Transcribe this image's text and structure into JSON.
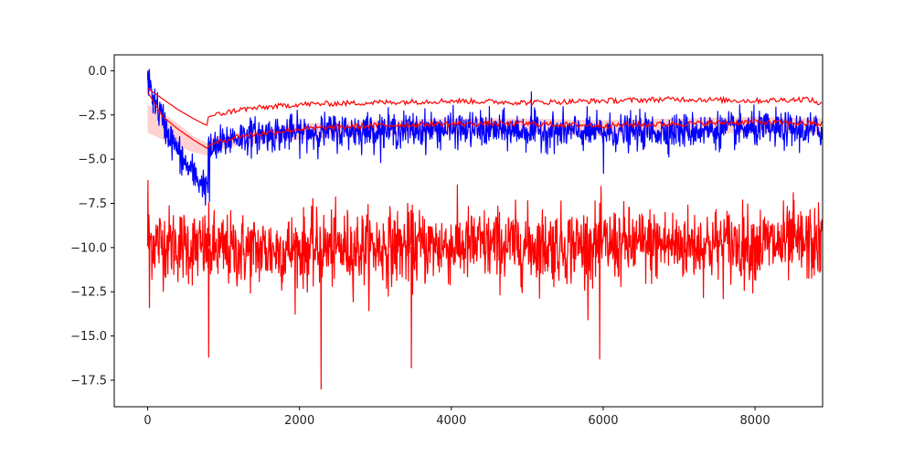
{
  "chart_data": {
    "type": "line",
    "title": "",
    "xlabel": "",
    "ylabel": "",
    "xlim": [
      -440,
      8890
    ],
    "ylim": [
      -19,
      0.9
    ],
    "grid": false,
    "x_ticks": [
      0,
      2000,
      4000,
      6000,
      8000
    ],
    "y_ticks": [
      0.0,
      -2.5,
      -5.0,
      -7.5,
      -10.0,
      -12.5,
      -15.0,
      -17.5
    ],
    "x_tick_labels": [
      "0",
      "2000",
      "4000",
      "6000",
      "8000"
    ],
    "y_tick_labels": [
      "0.0",
      "−2.5",
      "−5.0",
      "−7.5",
      "−10.0",
      "−12.5",
      "−15.0",
      "−17.5"
    ],
    "series": [
      {
        "kind": "noisy-line",
        "color": "#0000ff",
        "x_range": [
          0,
          8880
        ],
        "center": [
          [
            0,
            -0.5
          ],
          [
            100,
            -1.8
          ],
          [
            300,
            -3.8
          ],
          [
            500,
            -5.3
          ],
          [
            700,
            -6.3
          ],
          [
            790,
            -6.6
          ],
          [
            800,
            -4.6
          ],
          [
            1100,
            -3.8
          ],
          [
            1500,
            -3.6
          ],
          [
            2500,
            -3.4
          ],
          [
            4000,
            -3.3
          ],
          [
            6000,
            -3.5
          ],
          [
            8000,
            -3.3
          ],
          [
            8880,
            -3.4
          ]
        ],
        "spread": 0.65,
        "extremes": [
          [
            0,
            0.0
          ],
          [
            5050,
            -1.2
          ],
          [
            810,
            -7.4
          ],
          [
            6000,
            -5.8
          ]
        ]
      },
      {
        "kind": "noisy-line",
        "color": "#ff0000",
        "x_range": [
          0,
          8880
        ],
        "center": [
          [
            0,
            -9.6
          ],
          [
            1000,
            -10.2
          ],
          [
            4000,
            -9.9
          ],
          [
            8880,
            -9.8
          ]
        ],
        "spread": 1.4,
        "extremes": [
          [
            0,
            -6.2
          ],
          [
            20,
            -13.4
          ],
          [
            800,
            -16.2
          ],
          [
            2280,
            -18.0
          ],
          [
            3470,
            -16.8
          ],
          [
            5950,
            -16.3
          ],
          [
            8500,
            -6.9
          ]
        ]
      },
      {
        "kind": "smooth-line",
        "color": "#ff0000",
        "points": [
          [
            0,
            -1.0
          ],
          [
            200,
            -1.6
          ],
          [
            400,
            -2.2
          ],
          [
            600,
            -2.7
          ],
          [
            780,
            -3.1
          ],
          [
            800,
            -2.6
          ],
          [
            1200,
            -2.2
          ],
          [
            2000,
            -1.9
          ],
          [
            3000,
            -1.8
          ],
          [
            4000,
            -1.7
          ],
          [
            5000,
            -1.8
          ],
          [
            6000,
            -1.7
          ],
          [
            7000,
            -1.6
          ],
          [
            8000,
            -1.7
          ],
          [
            8700,
            -1.6
          ],
          [
            8880,
            -1.9
          ]
        ]
      },
      {
        "kind": "smooth-line",
        "color": "#ff0000",
        "points": [
          [
            0,
            -1.2
          ],
          [
            200,
            -2.6
          ],
          [
            400,
            -3.3
          ],
          [
            600,
            -3.9
          ],
          [
            790,
            -4.4
          ],
          [
            810,
            -4.2
          ],
          [
            1200,
            -3.7
          ],
          [
            2000,
            -3.3
          ],
          [
            3000,
            -3.1
          ],
          [
            4000,
            -3.0
          ],
          [
            5000,
            -3.0
          ],
          [
            6000,
            -3.1
          ],
          [
            7000,
            -3.0
          ],
          [
            8000,
            -2.9
          ],
          [
            8880,
            -3.0
          ]
        ]
      }
    ],
    "bands": [
      {
        "color": "#ff9999",
        "opacity": 0.45,
        "upper": [
          [
            0,
            -1.9
          ],
          [
            200,
            -2.4
          ],
          [
            400,
            -3.0
          ],
          [
            600,
            -3.7
          ],
          [
            790,
            -4.1
          ],
          [
            810,
            -3.8
          ],
          [
            1200,
            -3.5
          ],
          [
            2000,
            -3.0
          ],
          [
            3000,
            -2.8
          ],
          [
            4000,
            -2.7
          ],
          [
            5000,
            -2.7
          ],
          [
            6000,
            -2.8
          ],
          [
            7000,
            -2.7
          ],
          [
            8000,
            -2.6
          ],
          [
            8880,
            -2.7
          ]
        ],
        "lower": [
          [
            0,
            -3.5
          ],
          [
            200,
            -3.9
          ],
          [
            400,
            -4.3
          ],
          [
            600,
            -4.6
          ],
          [
            790,
            -4.8
          ],
          [
            810,
            -4.6
          ],
          [
            1200,
            -4.2
          ],
          [
            2000,
            -3.9
          ],
          [
            3000,
            -3.7
          ],
          [
            4000,
            -3.6
          ],
          [
            5000,
            -3.6
          ],
          [
            6000,
            -3.7
          ],
          [
            7000,
            -3.6
          ],
          [
            8000,
            -3.5
          ],
          [
            8880,
            -3.6
          ]
        ]
      }
    ]
  }
}
